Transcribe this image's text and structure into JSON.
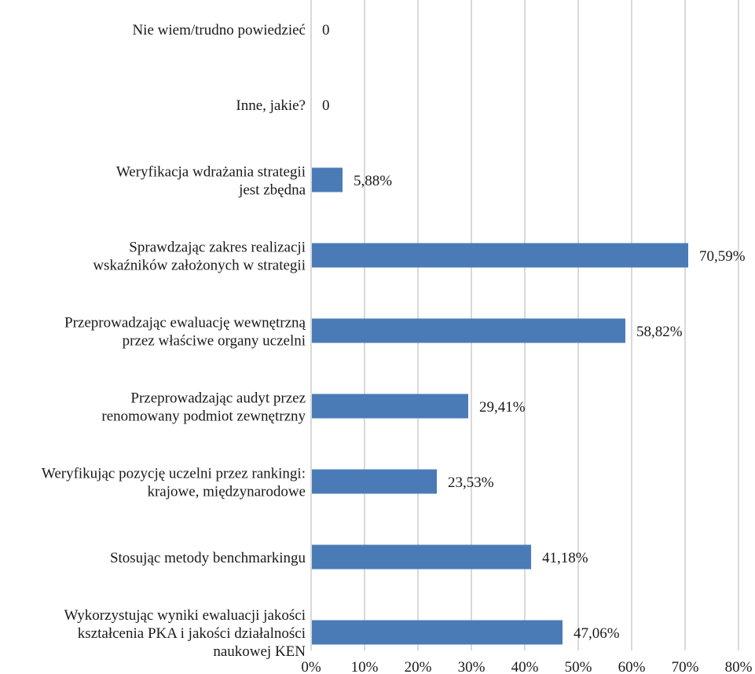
{
  "chart_data": {
    "type": "bar",
    "orientation": "horizontal",
    "categories": [
      [
        "Nie wiem/trudno powiedzieć"
      ],
      [
        "Inne, jakie?"
      ],
      [
        "Weryfikacja wdrażania strategii",
        "jest zbędna"
      ],
      [
        "Sprawdzając zakres realizacji",
        "wskaźników założonych w strategii"
      ],
      [
        "Przeprowadzając ewaluację wewnętrzną",
        "przez właściwe organy uczelni"
      ],
      [
        "Przeprowadzając audyt przez",
        "renomowany podmiot zewnętrzny"
      ],
      [
        "Weryfikując pozycję uczelni przez rankingi:",
        "krajowe, międzynarodowe"
      ],
      [
        "Stosując metody benchmarkingu"
      ],
      [
        "Wykorzystując wyniki ewaluacji jakości",
        "kształcenia PKA i jakości działalności",
        "naukowej KEN"
      ]
    ],
    "values": [
      0,
      0,
      5.88,
      70.59,
      58.82,
      29.41,
      23.53,
      41.18,
      47.06
    ],
    "data_labels": [
      "0",
      "0",
      "5,88%",
      "70,59%",
      "58,82%",
      "29,41%",
      "23,53%",
      "41,18%",
      "47,06%"
    ],
    "xlim": [
      0,
      80
    ],
    "x_ticks": [
      "0%",
      "10%",
      "20%",
      "30%",
      "40%",
      "50%",
      "60%",
      "70%",
      "80%"
    ],
    "grid": "vertical",
    "legend": "none",
    "bar_color": "#4a7bb7",
    "grid_color": "#d9d9d9"
  }
}
